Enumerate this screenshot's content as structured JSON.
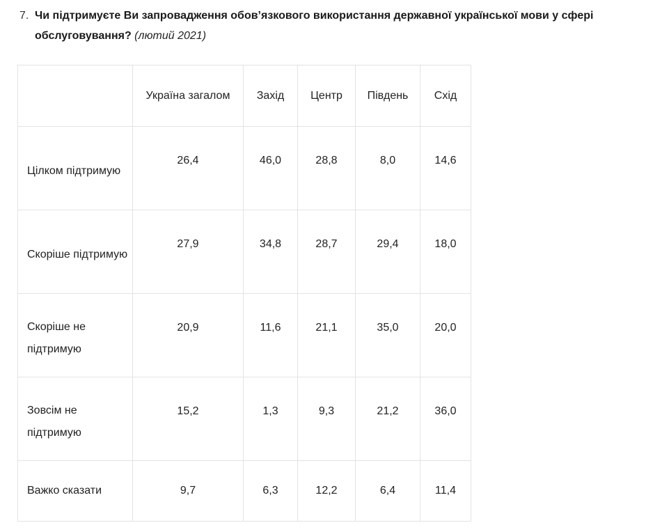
{
  "question": {
    "number": "7.",
    "text": "Чи підтримуєте Ви запровадження обов’язкового використання державної української мови у сфері обслуговування?",
    "date": "(лютий 2021)"
  },
  "table": {
    "columns": [
      "",
      "Україна загалом",
      "Захід",
      "Центр",
      "Південь",
      "Схід"
    ],
    "rows": [
      {
        "label": "Цілком підтримую",
        "values": [
          "26,4",
          "46,0",
          "28,8",
          "8,0",
          "14,6"
        ]
      },
      {
        "label": "Скоріше підтримую",
        "values": [
          "27,9",
          "34,8",
          "28,7",
          "29,4",
          "18,0"
        ]
      },
      {
        "label": "Скоріше не підтримую",
        "values": [
          "20,9",
          "11,6",
          "21,1",
          "35,0",
          "20,0"
        ]
      },
      {
        "label": "Зовсім не підтримую",
        "values": [
          "15,2",
          "1,3",
          "9,3",
          "21,2",
          "36,0"
        ]
      },
      {
        "label": "Важко сказати",
        "values": [
          "9,7",
          "6,3",
          "12,2",
          "6,4",
          "11,4"
        ]
      }
    ]
  }
}
